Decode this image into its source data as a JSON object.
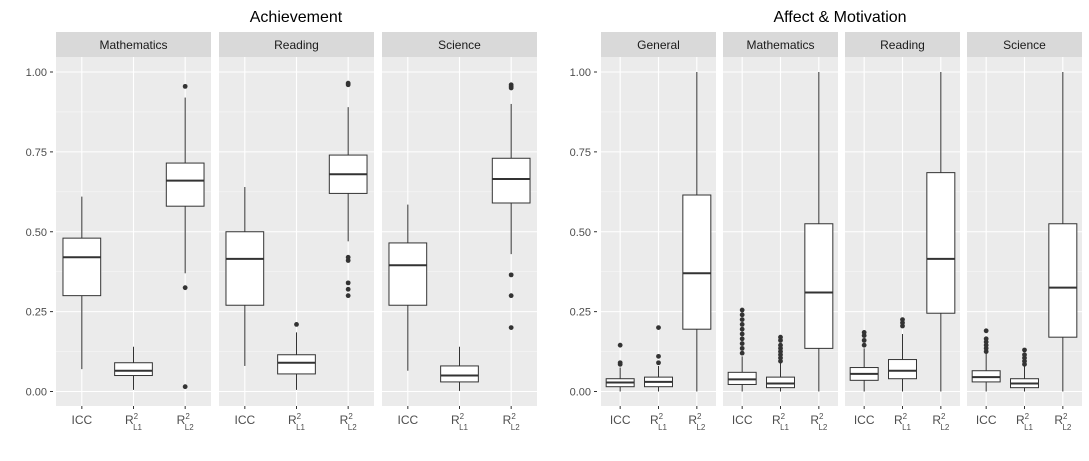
{
  "chart_data": [
    {
      "type": "boxplot",
      "title": "Achievement",
      "ylim": [
        0,
        1.0
      ],
      "yticks": [
        0.0,
        0.25,
        0.5,
        0.75,
        1.0
      ],
      "ytick_labels": [
        "0.00",
        "0.25",
        "0.50",
        "0.75",
        "1.00"
      ],
      "grid": true,
      "categories": [
        {
          "main": "ICC",
          "sub": "",
          "sup": ""
        },
        {
          "main": "R",
          "sub": "L1",
          "sup": "2"
        },
        {
          "main": "R",
          "sub": "L2",
          "sup": "2"
        }
      ],
      "facets": [
        {
          "name": "Mathematics",
          "boxes": [
            {
              "q1": 0.3,
              "median": 0.42,
              "q3": 0.48,
              "whisker_low": 0.07,
              "whisker_high": 0.61,
              "outliers": []
            },
            {
              "q1": 0.05,
              "median": 0.065,
              "q3": 0.09,
              "whisker_low": 0.005,
              "whisker_high": 0.14,
              "outliers": []
            },
            {
              "q1": 0.58,
              "median": 0.66,
              "q3": 0.715,
              "whisker_low": 0.37,
              "whisker_high": 0.92,
              "outliers": [
                0.955,
                0.325,
                0.015
              ]
            }
          ]
        },
        {
          "name": "Reading",
          "boxes": [
            {
              "q1": 0.27,
              "median": 0.415,
              "q3": 0.5,
              "whisker_low": 0.08,
              "whisker_high": 0.64,
              "outliers": []
            },
            {
              "q1": 0.055,
              "median": 0.09,
              "q3": 0.115,
              "whisker_low": 0.005,
              "whisker_high": 0.185,
              "outliers": [
                0.21
              ]
            },
            {
              "q1": 0.62,
              "median": 0.68,
              "q3": 0.74,
              "whisker_low": 0.47,
              "whisker_high": 0.89,
              "outliers": [
                0.965,
                0.96,
                0.42,
                0.41,
                0.34,
                0.32,
                0.3
              ]
            }
          ]
        },
        {
          "name": "Science",
          "boxes": [
            {
              "q1": 0.27,
              "median": 0.395,
              "q3": 0.465,
              "whisker_low": 0.065,
              "whisker_high": 0.585,
              "outliers": []
            },
            {
              "q1": 0.03,
              "median": 0.05,
              "q3": 0.08,
              "whisker_low": 0.002,
              "whisker_high": 0.14,
              "outliers": []
            },
            {
              "q1": 0.59,
              "median": 0.665,
              "q3": 0.73,
              "whisker_low": 0.43,
              "whisker_high": 0.9,
              "outliers": [
                0.96,
                0.955,
                0.95,
                0.365,
                0.3,
                0.2
              ]
            }
          ]
        }
      ]
    },
    {
      "type": "boxplot",
      "title": "Affect & Motivation",
      "ylim": [
        0,
        1.0
      ],
      "yticks": [
        0.0,
        0.25,
        0.5,
        0.75,
        1.0
      ],
      "ytick_labels": [
        "0.00",
        "0.25",
        "0.50",
        "0.75",
        "1.00"
      ],
      "grid": true,
      "categories": [
        {
          "main": "ICC",
          "sub": "",
          "sup": ""
        },
        {
          "main": "R",
          "sub": "L1",
          "sup": "2"
        },
        {
          "main": "R",
          "sub": "L2",
          "sup": "2"
        }
      ],
      "facets": [
        {
          "name": "General",
          "boxes": [
            {
              "q1": 0.015,
              "median": 0.028,
              "q3": 0.04,
              "whisker_low": 0.0,
              "whisker_high": 0.075,
              "outliers": [
                0.085,
                0.09,
                0.145
              ]
            },
            {
              "q1": 0.015,
              "median": 0.03,
              "q3": 0.045,
              "whisker_low": 0.0,
              "whisker_high": 0.08,
              "outliers": [
                0.09,
                0.11,
                0.2
              ]
            },
            {
              "q1": 0.195,
              "median": 0.37,
              "q3": 0.615,
              "whisker_low": 0.0,
              "whisker_high": 1.0,
              "outliers": []
            }
          ]
        },
        {
          "name": "Mathematics",
          "boxes": [
            {
              "q1": 0.022,
              "median": 0.038,
              "q3": 0.06,
              "whisker_low": 0.0,
              "whisker_high": 0.11,
              "outliers": [
                0.12,
                0.135,
                0.15,
                0.165,
                0.18,
                0.195,
                0.21,
                0.225,
                0.24,
                0.255
              ]
            },
            {
              "q1": 0.012,
              "median": 0.025,
              "q3": 0.045,
              "whisker_low": 0.0,
              "whisker_high": 0.09,
              "outliers": [
                0.095,
                0.105,
                0.115,
                0.125,
                0.135,
                0.145,
                0.16,
                0.17
              ]
            },
            {
              "q1": 0.135,
              "median": 0.31,
              "q3": 0.525,
              "whisker_low": 0.0,
              "whisker_high": 1.0,
              "outliers": []
            }
          ]
        },
        {
          "name": "Reading",
          "boxes": [
            {
              "q1": 0.035,
              "median": 0.055,
              "q3": 0.075,
              "whisker_low": 0.0,
              "whisker_high": 0.135,
              "outliers": [
                0.145,
                0.16,
                0.175,
                0.185
              ]
            },
            {
              "q1": 0.04,
              "median": 0.065,
              "q3": 0.1,
              "whisker_low": 0.0,
              "whisker_high": 0.18,
              "outliers": [
                0.205,
                0.215,
                0.225
              ]
            },
            {
              "q1": 0.245,
              "median": 0.415,
              "q3": 0.685,
              "whisker_low": 0.0,
              "whisker_high": 1.0,
              "outliers": []
            }
          ]
        },
        {
          "name": "Science",
          "boxes": [
            {
              "q1": 0.03,
              "median": 0.045,
              "q3": 0.065,
              "whisker_low": 0.0,
              "whisker_high": 0.12,
              "outliers": [
                0.125,
                0.135,
                0.145,
                0.155,
                0.165,
                0.19
              ]
            },
            {
              "q1": 0.012,
              "median": 0.025,
              "q3": 0.04,
              "whisker_low": 0.0,
              "whisker_high": 0.08,
              "outliers": [
                0.085,
                0.095,
                0.105,
                0.115,
                0.13
              ]
            },
            {
              "q1": 0.17,
              "median": 0.325,
              "q3": 0.525,
              "whisker_low": 0.0,
              "whisker_high": 1.0,
              "outliers": []
            }
          ]
        }
      ]
    }
  ],
  "colors": {
    "panel_background": "#ebebeb",
    "strip_background": "#d9d9d9",
    "grid_major": "#ffffff",
    "box_fill": "#ffffff",
    "box_stroke": "#333333",
    "outlier": "#333333",
    "tick_text": "#4d4d4d",
    "strip_text": "#1a1a1a",
    "title_text": "#000000"
  }
}
